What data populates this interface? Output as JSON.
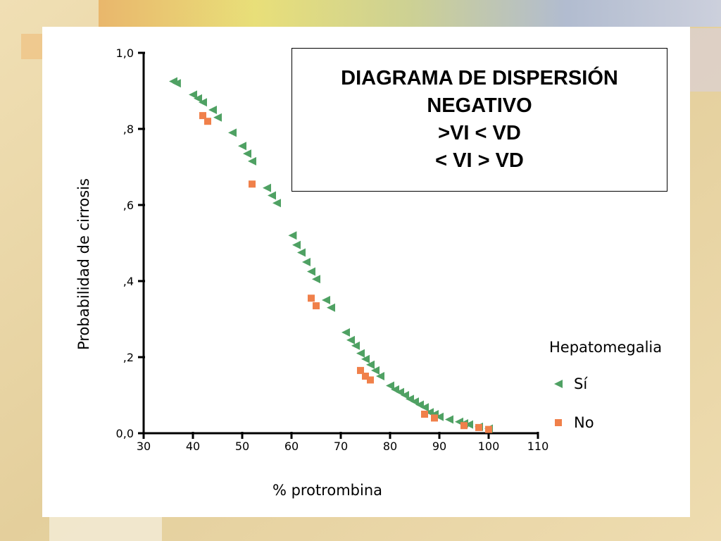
{
  "title_box": {
    "lines": [
      "DIAGRAMA DE DISPERSIÓN",
      "NEGATIVO",
      ">VI < VD",
      "< VI > VD"
    ]
  },
  "chart_data": {
    "type": "scatter",
    "xlabel": "% protrombina",
    "ylabel": "Probabilidad de cirrosis",
    "xlim": [
      30,
      110
    ],
    "ylim": [
      0,
      1
    ],
    "x_ticks": [
      30,
      40,
      50,
      60,
      70,
      80,
      90,
      100,
      110
    ],
    "y_ticks": [
      {
        "value": 0,
        "label": "0,0"
      },
      {
        "value": 0.2,
        "label": ",2"
      },
      {
        "value": 0.4,
        "label": ",4"
      },
      {
        "value": 0.6,
        "label": ",6"
      },
      {
        "value": 0.8,
        "label": ",8"
      },
      {
        "value": 1.0,
        "label": "1,0"
      }
    ],
    "grid": false,
    "legend": {
      "title": "Hepatomegalia",
      "position": "right"
    },
    "series": [
      {
        "name": "Sí",
        "marker": "triangle-left",
        "color": "#4fa163",
        "points": [
          [
            36,
            0.925
          ],
          [
            36.7,
            0.92
          ],
          [
            40,
            0.89
          ],
          [
            41,
            0.88
          ],
          [
            42,
            0.87
          ],
          [
            44,
            0.85
          ],
          [
            45,
            0.83
          ],
          [
            48,
            0.79
          ],
          [
            50,
            0.755
          ],
          [
            51,
            0.735
          ],
          [
            52,
            0.715
          ],
          [
            55,
            0.645
          ],
          [
            56,
            0.625
          ],
          [
            57,
            0.605
          ],
          [
            60.2,
            0.52
          ],
          [
            61,
            0.495
          ],
          [
            62,
            0.475
          ],
          [
            63,
            0.45
          ],
          [
            64,
            0.425
          ],
          [
            65,
            0.405
          ],
          [
            67,
            0.35
          ],
          [
            68,
            0.33
          ],
          [
            71,
            0.265
          ],
          [
            72,
            0.245
          ],
          [
            73,
            0.23
          ],
          [
            74,
            0.21
          ],
          [
            75,
            0.195
          ],
          [
            76,
            0.18
          ],
          [
            77,
            0.165
          ],
          [
            78,
            0.15
          ],
          [
            80,
            0.125
          ],
          [
            81,
            0.115
          ],
          [
            82,
            0.108
          ],
          [
            83,
            0.1
          ],
          [
            84,
            0.09
          ],
          [
            85,
            0.083
          ],
          [
            86,
            0.075
          ],
          [
            87,
            0.068
          ],
          [
            88,
            0.055
          ],
          [
            89,
            0.05
          ],
          [
            90,
            0.043
          ],
          [
            92,
            0.036
          ],
          [
            94,
            0.03
          ],
          [
            95,
            0.026
          ],
          [
            96,
            0.023
          ],
          [
            98,
            0.017
          ],
          [
            100,
            0.012
          ]
        ]
      },
      {
        "name": "No",
        "marker": "square",
        "color": "#f0804a",
        "points": [
          [
            42,
            0.835
          ],
          [
            43,
            0.82
          ],
          [
            52,
            0.655
          ],
          [
            64,
            0.355
          ],
          [
            65,
            0.335
          ],
          [
            74,
            0.165
          ],
          [
            75,
            0.15
          ],
          [
            76,
            0.14
          ],
          [
            87,
            0.05
          ],
          [
            89,
            0.04
          ],
          [
            95,
            0.02
          ],
          [
            98,
            0.015
          ],
          [
            100,
            0.01
          ]
        ]
      }
    ]
  }
}
